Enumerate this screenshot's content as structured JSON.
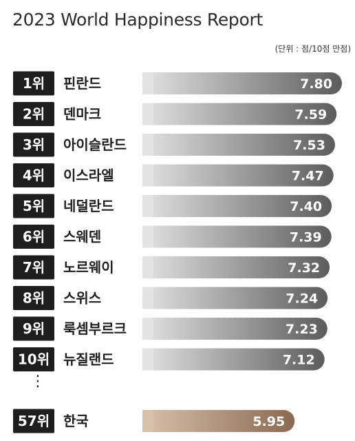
{
  "chart_data": {
    "type": "bar",
    "orientation": "horizontal",
    "title": "2023 World Happiness Report",
    "unit_note": "(단위 : 점/10점 만점)",
    "rows": [
      {
        "rank": "1위",
        "country": "핀란드",
        "value": 7.8,
        "label": "7.80",
        "highlight": false
      },
      {
        "rank": "2위",
        "country": "덴마크",
        "value": 7.59,
        "label": "7.59",
        "highlight": false
      },
      {
        "rank": "3위",
        "country": "아이슬란드",
        "value": 7.53,
        "label": "7.53",
        "highlight": false
      },
      {
        "rank": "4위",
        "country": "이스라엘",
        "value": 7.47,
        "label": "7.47",
        "highlight": false
      },
      {
        "rank": "5위",
        "country": "네덜란드",
        "value": 7.4,
        "label": "7.40",
        "highlight": false
      },
      {
        "rank": "6위",
        "country": "스웨덴",
        "value": 7.39,
        "label": "7.39",
        "highlight": false
      },
      {
        "rank": "7위",
        "country": "노르웨이",
        "value": 7.32,
        "label": "7.32",
        "highlight": false
      },
      {
        "rank": "8위",
        "country": "스위스",
        "value": 7.24,
        "label": "7.24",
        "highlight": false
      },
      {
        "rank": "9위",
        "country": "룩셈부르크",
        "value": 7.23,
        "label": "7.23",
        "highlight": false
      },
      {
        "rank": "10위",
        "country": "뉴질랜드",
        "value": 7.12,
        "label": "7.12",
        "highlight": false
      },
      {
        "rank": "57위",
        "country": "한국",
        "value": 5.95,
        "label": "5.95",
        "highlight": true
      }
    ],
    "ellipsis": "⋮",
    "colors": {
      "rank_badge": "#1e1e1e",
      "bar_gradient_start": "#e3e3e3",
      "bar_gradient_end": "#5c5c5c",
      "highlight_gradient_start": "#d8c0ab",
      "highlight_gradient_end": "#8a6a51"
    },
    "legend": "none",
    "grid": false
  }
}
